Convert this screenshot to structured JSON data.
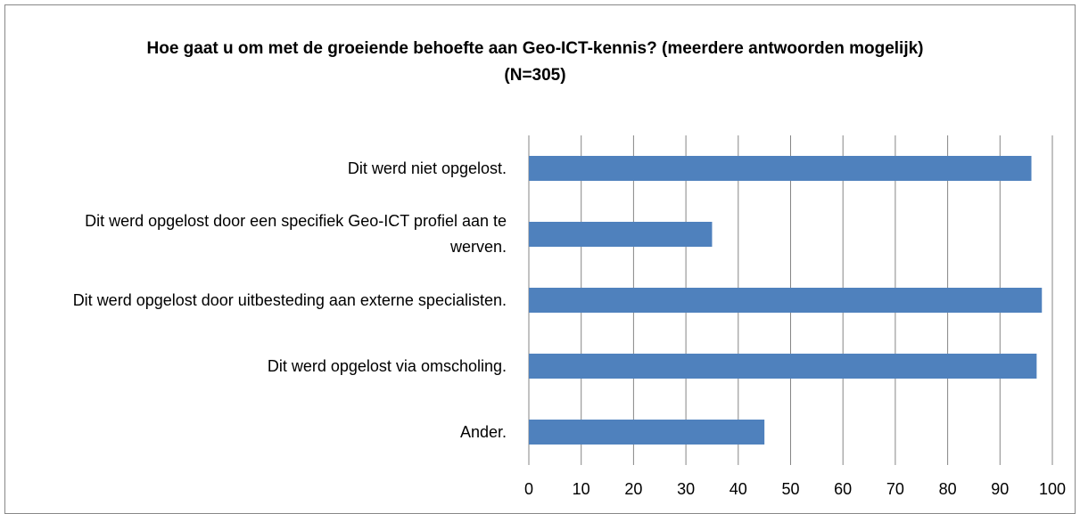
{
  "chart_data": {
    "type": "bar",
    "orientation": "horizontal",
    "title": "Hoe gaat u om met de groeiende behoefte aan Geo-ICT-kennis? (meerdere antwoorden mogelijk)  (N=305)",
    "categories": [
      "Dit werd niet opgelost.",
      "Dit werd opgelost door een specifiek Geo-ICT profiel aan te werven.",
      "Dit werd opgelost door uitbesteding aan externe specialisten.",
      "Dit werd opgelost via omscholing.",
      "Ander."
    ],
    "values": [
      96,
      35,
      98,
      97,
      45
    ],
    "color": "#4f81bd",
    "xlim": [
      0,
      100
    ],
    "xticks": [
      0,
      10,
      20,
      30,
      40,
      50,
      60,
      70,
      80,
      90,
      100
    ],
    "grid": true
  }
}
